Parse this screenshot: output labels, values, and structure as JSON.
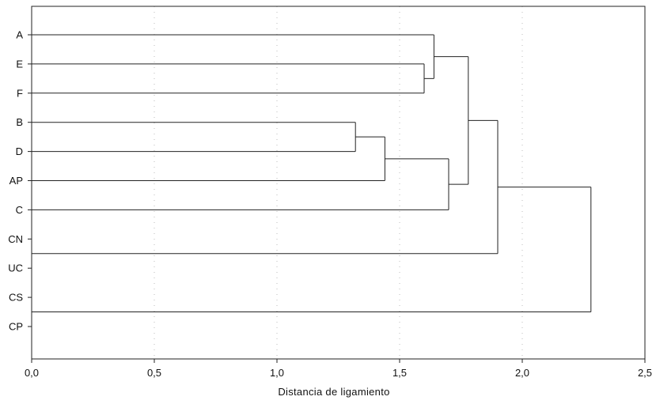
{
  "chart_data": {
    "type": "dendrogram",
    "xlabel": "Distancia de ligamiento",
    "ylabel": "",
    "xlim": [
      0,
      2.5
    ],
    "x_ticks": [
      0,
      0.5,
      1.0,
      1.5,
      2.0,
      2.5
    ],
    "x_tick_labels": [
      "0,0",
      "0,5",
      "1,0",
      "1,5",
      "2,0",
      "2,5"
    ],
    "grid": true,
    "leaves": [
      "A",
      "E",
      "F",
      "B",
      "D",
      "AP",
      "C",
      "CN",
      "UC",
      "CS",
      "CP"
    ],
    "merges": [
      {
        "id": "m1",
        "children": [
          "E",
          "F"
        ],
        "height": 1.6
      },
      {
        "id": "m2",
        "children": [
          "A",
          "m1"
        ],
        "height": 1.64
      },
      {
        "id": "m3",
        "children": [
          "B",
          "D"
        ],
        "height": 1.32
      },
      {
        "id": "m4",
        "children": [
          "m3",
          "AP"
        ],
        "height": 1.44
      },
      {
        "id": "m5",
        "children": [
          "m4",
          "C"
        ],
        "height": 1.7
      },
      {
        "id": "m6",
        "children": [
          "m2",
          "m5"
        ],
        "height": 1.78
      },
      {
        "id": "m7",
        "children": [
          "CN",
          "UC"
        ],
        "height": 0
      },
      {
        "id": "m8",
        "children": [
          "m6",
          "m7"
        ],
        "height": 1.9
      },
      {
        "id": "m9",
        "children": [
          "CS",
          "CP"
        ],
        "height": 0
      },
      {
        "id": "m10",
        "children": [
          "m8",
          "m9"
        ],
        "height": 2.28
      }
    ]
  }
}
